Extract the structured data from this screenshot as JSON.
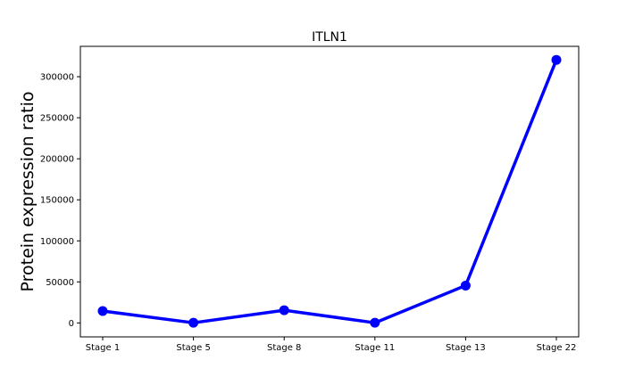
{
  "chart_data": {
    "type": "line",
    "title": "ITLN1",
    "xlabel": "",
    "ylabel": "Protein expression ratio",
    "categories": [
      "Stage 1",
      "Stage 5",
      "Stage 8",
      "Stage 11",
      "Stage 13",
      "Stage 22"
    ],
    "series": [
      {
        "values": [
          14500,
          200,
          15500,
          200,
          45500,
          320500
        ]
      }
    ],
    "ylim": [
      -17000,
      337000
    ],
    "yticks": [
      0,
      50000,
      100000,
      150000,
      200000,
      250000,
      300000
    ],
    "grid": false,
    "line_color": "#0000ff",
    "marker": "circle"
  }
}
